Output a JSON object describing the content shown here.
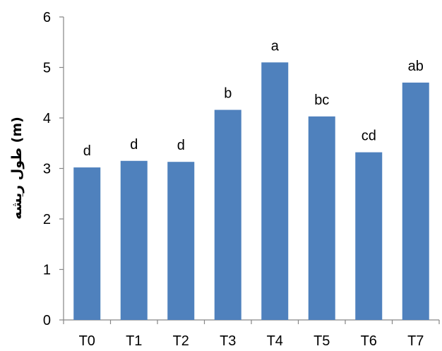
{
  "chart_data": {
    "type": "bar",
    "categories": [
      "T0",
      "T1",
      "T2",
      "T3",
      "T4",
      "T5",
      "T6",
      "T7"
    ],
    "values": [
      3.02,
      3.15,
      3.13,
      4.16,
      5.1,
      4.03,
      3.32,
      4.7
    ],
    "data_labels": [
      "d",
      "d",
      "d",
      "b",
      "a",
      "bc",
      "cd",
      "ab"
    ],
    "ylabel": "طول ریشه (m)",
    "xlabel": "",
    "ylim": [
      0,
      6
    ],
    "yticks": [
      "0",
      "1",
      "2",
      "3",
      "4",
      "5",
      "6"
    ],
    "grid": false,
    "bar_color": "#4f81bd"
  }
}
